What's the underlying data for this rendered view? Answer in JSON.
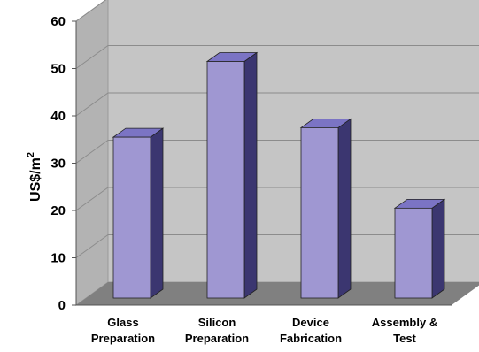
{
  "chart_data": {
    "type": "bar",
    "title": "",
    "xlabel": "",
    "ylabel": "US$/m",
    "ylabel_superscript": "2",
    "categories": [
      [
        "Glass",
        "Preparation"
      ],
      [
        "Silicon",
        "Preparation"
      ],
      [
        "Device",
        "Fabrication"
      ],
      [
        "Assembly &",
        "Test"
      ]
    ],
    "values": [
      34,
      50,
      36,
      19
    ],
    "ylim": [
      0,
      60
    ],
    "yticks": [
      "0",
      "10",
      "20",
      "30",
      "40",
      "50",
      "60"
    ],
    "grid": true,
    "three_d": true,
    "colors": {
      "bar_front": "#9f97d2",
      "bar_side": "#3b3670",
      "bar_top": "#7b74c4",
      "wall": "#c5c5c5",
      "floor": "#808080",
      "grid": "#8c8c8c"
    }
  }
}
